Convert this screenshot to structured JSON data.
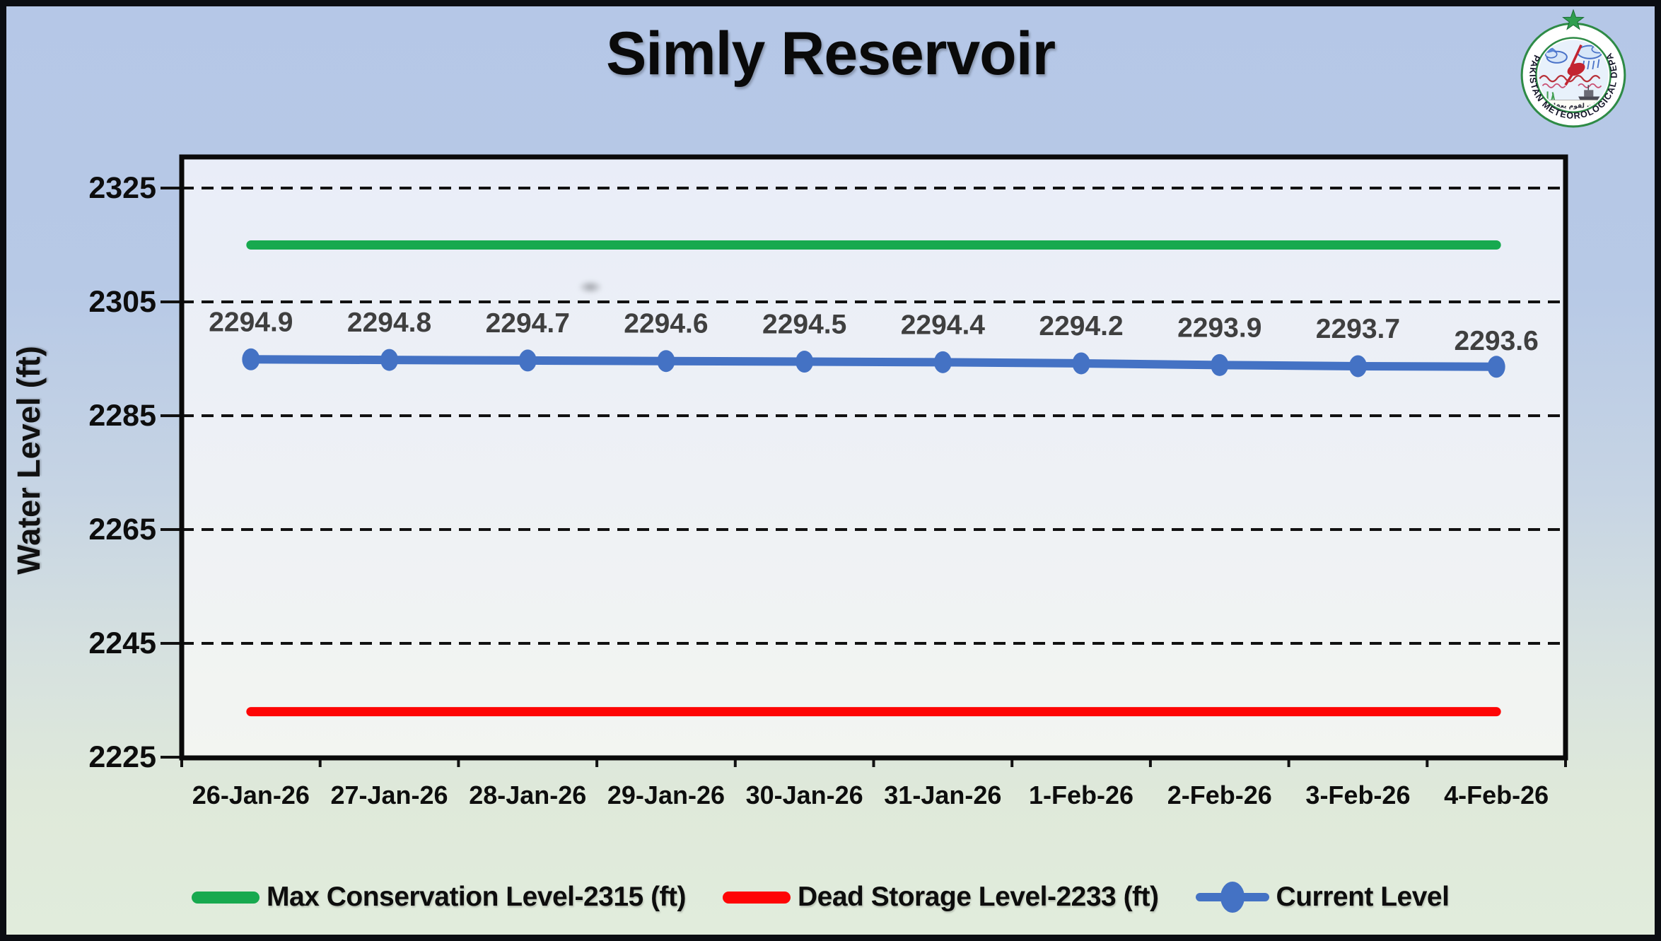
{
  "title": "Simly Reservoir",
  "logo": {
    "ring_text": "PAKISTAN METEOROLOGICAL DEPARTMENT",
    "motto": "لآيات لقوم يعقلون"
  },
  "colors": {
    "max_conservation": "#17a94f",
    "dead_storage": "#fe0505",
    "current_level": "#4472c4",
    "data_label": "#3f3f3f",
    "grid": "#111111",
    "axis_text": "#0d0d0d",
    "bg_top": "#b5c7e7",
    "bg_bottom": "#e1ecdc"
  },
  "chart_data": {
    "type": "line",
    "title": "Simly Reservoir",
    "xlabel": "",
    "ylabel": "Water Level (ft)",
    "ylim": [
      2225,
      2331
    ],
    "y_ticks": [
      2225,
      2245,
      2265,
      2285,
      2305,
      2325
    ],
    "grid": "horizontal-dashed",
    "legend_position": "bottom",
    "categories": [
      "26-Jan-26",
      "27-Jan-26",
      "28-Jan-26",
      "29-Jan-26",
      "30-Jan-26",
      "31-Jan-26",
      "1-Feb-26",
      "2-Feb-26",
      "3-Feb-26",
      "4-Feb-26"
    ],
    "series": [
      {
        "name": "Max Conservation Level-2315 (ft)",
        "kind": "reference-line",
        "color": "#17a94f",
        "value": 2315
      },
      {
        "name": "Dead Storage Level-2233 (ft)",
        "kind": "reference-line",
        "color": "#fe0505",
        "value": 2233
      },
      {
        "name": "Current Level",
        "kind": "line-markers",
        "color": "#4472c4",
        "values": [
          2294.9,
          2294.8,
          2294.7,
          2294.6,
          2294.5,
          2294.4,
          2294.2,
          2293.9,
          2293.7,
          2293.6
        ],
        "data_labels": [
          "2294.9",
          "2294.8",
          "2294.7",
          "2294.6",
          "2294.5",
          "2294.4",
          "2294.2",
          "2293.9",
          "2293.7",
          "2293.6"
        ]
      }
    ]
  },
  "legend": [
    {
      "label": "Max Conservation Level-2315 (ft)",
      "color": "#17a94f",
      "marker": "line"
    },
    {
      "label": "Dead Storage Level-2233 (ft)",
      "color": "#fe0505",
      "marker": "line"
    },
    {
      "label": "Current Level",
      "color": "#4472c4",
      "marker": "line-dot"
    }
  ]
}
